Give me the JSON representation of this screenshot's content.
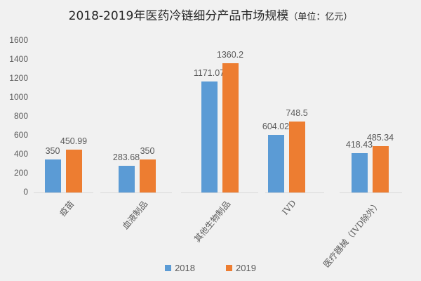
{
  "chart_data": {
    "type": "bar",
    "title": "2018-2019年医药冷链细分产品市场规模",
    "title_unit": "（单位：亿元）",
    "xlabel": "",
    "ylabel": "",
    "ylim": [
      0,
      1600
    ],
    "yticks": [
      "0",
      "200",
      "400",
      "600",
      "800",
      "1000",
      "1200",
      "1400",
      "1600"
    ],
    "grid": false,
    "legend_position": "bottom",
    "categories": [
      "疫苗",
      "血液制品",
      "其他生物制品",
      "IVD",
      "医疗器械（IVD除外）"
    ],
    "series": [
      {
        "name": "2018",
        "color": "#5b9bd5",
        "values": [
          350,
          283.68,
          1171.07,
          604.02,
          418.43
        ],
        "labels": [
          "350",
          "283.68",
          "1171.07",
          "604.02",
          "418.43"
        ]
      },
      {
        "name": "2019",
        "color": "#ed7d31",
        "values": [
          450.99,
          350,
          1360.2,
          748.5,
          485.34
        ],
        "labels": [
          "450.99",
          "350",
          "1360.2",
          "748.5",
          "485.34"
        ]
      }
    ]
  }
}
